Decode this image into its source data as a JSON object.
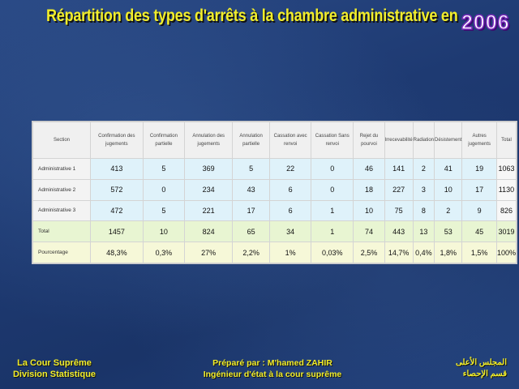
{
  "title": {
    "text": "Répartition des types d'arrêts à la chambre administrative en",
    "year": "2006"
  },
  "table": {
    "headers": [
      "Section",
      "Confirmation des jugements",
      "Confirmation partielle",
      "Annulation des jugements",
      "Annulation partielle",
      "Cassation avec renvoi",
      "Cassation Sans renvoi",
      "Rejet du pourvoi",
      "Irrecevabilité",
      "Radiation",
      "Désistement",
      "Autres jugements",
      "Total"
    ],
    "rows": [
      [
        "Administrative 1",
        "413",
        "5",
        "369",
        "5",
        "22",
        "0",
        "46",
        "141",
        "2",
        "41",
        "19",
        "1063"
      ],
      [
        "Administrative 2",
        "572",
        "0",
        "234",
        "43",
        "6",
        "0",
        "18",
        "227",
        "3",
        "10",
        "17",
        "1130"
      ],
      [
        "Administrative 3",
        "472",
        "5",
        "221",
        "17",
        "6",
        "1",
        "10",
        "75",
        "8",
        "2",
        "9",
        "826"
      ]
    ],
    "total": [
      "Total",
      "1457",
      "10",
      "824",
      "65",
      "34",
      "1",
      "74",
      "443",
      "13",
      "53",
      "45",
      "3019"
    ],
    "percentage": [
      "Pourcentage",
      "48,3%",
      "0,3%",
      "27%",
      "2,2%",
      "1%",
      "0,03%",
      "2,5%",
      "14,7%",
      "0,4%",
      "1,8%",
      "1,5%",
      "100%"
    ]
  },
  "footer": {
    "left_line1": "La Cour Suprême",
    "left_line2": "Division Statistique",
    "mid_line1": "Préparé par : M'hamed ZAHIR",
    "mid_line2": "Ingénieur d'état à la cour suprême",
    "right_line1": "المجلس الأعلى",
    "right_line2": "قسم الإحصاء"
  },
  "colors": {
    "title": "#f2ee2a",
    "year_fill": "#ffffff",
    "year_outline": "#7b2bbd",
    "background": "#1e3a72"
  }
}
